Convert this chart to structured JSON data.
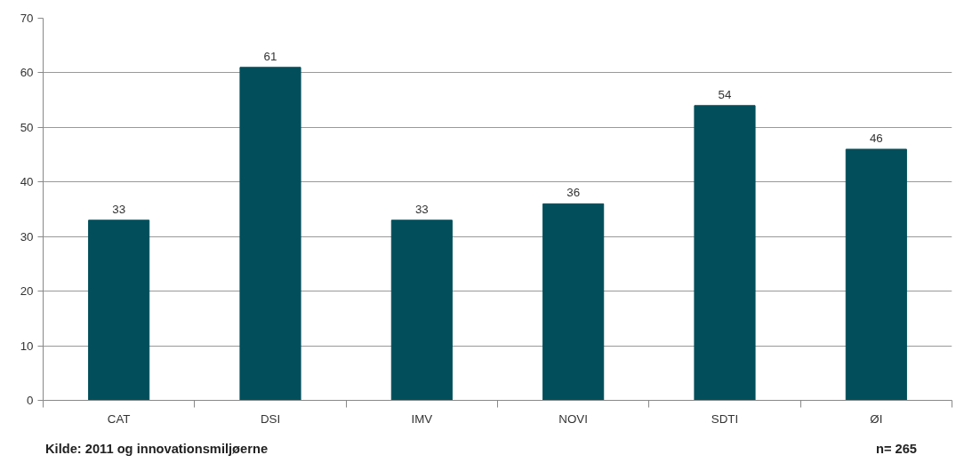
{
  "chart_data": {
    "type": "bar",
    "categories": [
      "CAT",
      "DSI",
      "IMV",
      "NOVI",
      "SDTI",
      "ØI"
    ],
    "values": [
      33,
      61,
      33,
      36,
      54,
      46
    ],
    "color": "#024f5b",
    "ylim": [
      0,
      70
    ],
    "yticks": [
      0,
      10,
      20,
      30,
      40,
      50,
      60,
      70
    ],
    "grid": "y",
    "data_labels": true,
    "annotations": [
      "Kilde: 2011 og innovationsmiljøerne",
      "n= 265"
    ]
  }
}
